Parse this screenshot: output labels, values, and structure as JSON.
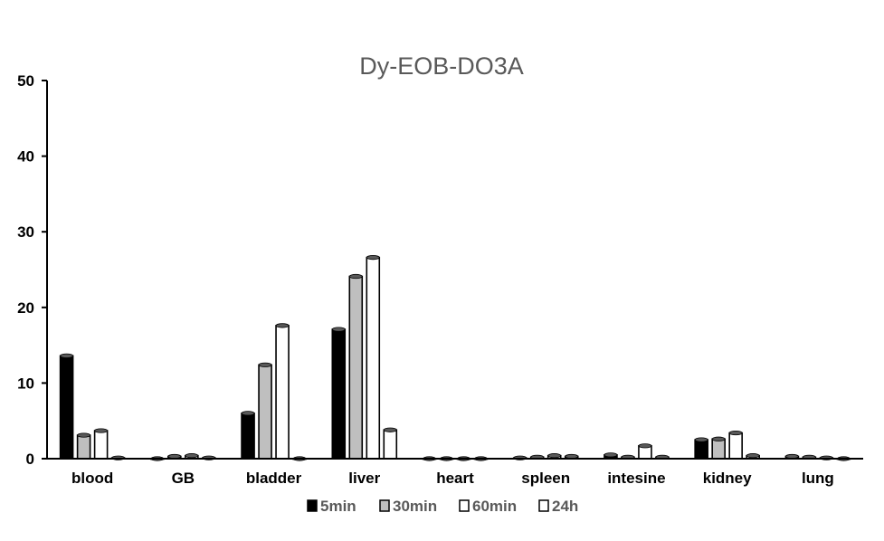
{
  "chart_data": {
    "type": "bar",
    "title": "Dy-EOB-DO3A",
    "xlabel": "",
    "ylabel": "",
    "ylim": [
      0,
      50
    ],
    "yticks": [
      "0",
      "10",
      "20",
      "30",
      "40",
      "50"
    ],
    "categories": [
      "blood",
      "GB",
      "bladder",
      "liver",
      "heart",
      "spleen",
      "intesine",
      "kidney",
      "lung"
    ],
    "series": [
      {
        "name": "5min",
        "color": "#000000",
        "values": [
          13.6,
          0.0,
          6.0,
          17.1,
          0.0,
          0.1,
          0.5,
          2.5,
          0.3
        ]
      },
      {
        "name": "30min",
        "color": "#bfbfbf",
        "values": [
          3.1,
          0.3,
          12.4,
          24.1,
          0.0,
          0.2,
          0.2,
          2.6,
          0.2
        ]
      },
      {
        "name": "60min",
        "color": "#ffffff",
        "values": [
          3.7,
          0.4,
          17.6,
          26.6,
          0.0,
          0.4,
          1.7,
          3.4,
          0.1
        ]
      },
      {
        "name": "24h",
        "color": "#ffffff",
        "values": [
          0.1,
          0.1,
          0.0,
          3.8,
          0.0,
          0.3,
          0.2,
          0.4,
          0.0
        ]
      }
    ],
    "grid": false,
    "legend_position": "bottom"
  }
}
